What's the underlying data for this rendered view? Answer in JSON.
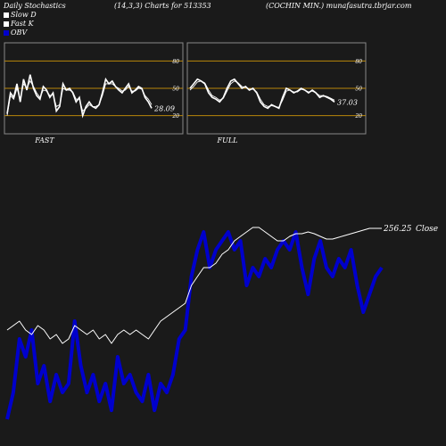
{
  "header": {
    "left": "Daily Stochastics",
    "center": "(14,3,3) Charts for 513353",
    "right": "(COCHIN  MIN.) munafasutra.tbrjar.com"
  },
  "legend": [
    {
      "label": "Slow  D",
      "color": "#ffffff"
    },
    {
      "label": "Fast K",
      "color": "#ffffff"
    },
    {
      "label": "OBV",
      "color": "#0000cc"
    }
  ],
  "chart_data": [
    {
      "type": "line",
      "title": "FAST",
      "levels": [
        80,
        50,
        20
      ],
      "ylim": [
        0,
        100
      ],
      "last_label": "28.09",
      "series": [
        {
          "values": [
            22,
            45,
            40,
            55,
            35,
            60,
            48,
            65,
            50,
            42,
            38,
            52,
            48,
            40,
            45,
            25,
            30,
            55,
            48,
            50,
            45,
            35,
            40,
            20,
            30,
            35,
            30,
            28,
            32,
            45,
            60,
            55,
            58,
            52,
            48,
            45,
            50,
            55,
            45,
            48,
            52,
            50,
            40,
            35,
            28
          ]
        },
        {
          "values": [
            20,
            42,
            38,
            50,
            38,
            55,
            50,
            58,
            52,
            45,
            40,
            48,
            47,
            42,
            43,
            30,
            32,
            50,
            48,
            48,
            46,
            38,
            38,
            25,
            28,
            32,
            30,
            30,
            32,
            42,
            55,
            55,
            55,
            52,
            50,
            47,
            48,
            52,
            47,
            47,
            50,
            49,
            42,
            38,
            32
          ]
        }
      ]
    },
    {
      "type": "line",
      "title": "FULL",
      "levels": [
        80,
        50,
        20
      ],
      "ylim": [
        0,
        100
      ],
      "last_label": "37.03",
      "series": [
        {
          "values": [
            50,
            55,
            60,
            58,
            55,
            45,
            40,
            38,
            35,
            40,
            50,
            58,
            60,
            55,
            50,
            52,
            48,
            50,
            45,
            35,
            30,
            28,
            32,
            30,
            28,
            40,
            50,
            48,
            45,
            47,
            50,
            48,
            45,
            48,
            45,
            40,
            42,
            40,
            38,
            35
          ]
        },
        {
          "values": [
            48,
            52,
            57,
            58,
            56,
            48,
            42,
            40,
            37,
            39,
            47,
            55,
            58,
            56,
            52,
            51,
            49,
            49,
            46,
            38,
            32,
            30,
            31,
            30,
            29,
            37,
            47,
            48,
            46,
            46,
            49,
            48,
            46,
            47,
            45,
            42,
            42,
            41,
            39,
            37
          ]
        }
      ]
    },
    {
      "type": "line",
      "label": "Close",
      "last_value": "256.25",
      "series": [
        {
          "name": "OBV",
          "color": "#0000cc",
          "values": [
            470,
            440,
            380,
            400,
            370,
            430,
            410,
            450,
            420,
            440,
            430,
            360,
            410,
            440,
            420,
            450,
            430,
            460,
            400,
            430,
            420,
            440,
            450,
            420,
            460,
            430,
            440,
            420,
            380,
            370,
            310,
            280,
            260,
            300,
            280,
            270,
            260,
            280,
            270,
            320,
            300,
            310,
            290,
            300,
            280,
            270,
            280,
            260,
            300,
            330,
            290,
            270,
            300,
            310,
            290,
            300,
            280,
            320,
            350,
            330,
            310,
            300
          ]
        },
        {
          "name": "Close",
          "color": "#ffffff",
          "values": [
            370,
            365,
            360,
            370,
            375,
            365,
            370,
            380,
            375,
            385,
            380,
            365,
            370,
            375,
            370,
            380,
            375,
            385,
            375,
            370,
            375,
            370,
            375,
            380,
            370,
            360,
            355,
            350,
            345,
            340,
            320,
            310,
            300,
            300,
            295,
            285,
            280,
            270,
            265,
            260,
            255,
            255,
            260,
            265,
            270,
            270,
            265,
            262,
            262,
            260,
            262,
            265,
            268,
            268,
            266,
            264,
            262,
            260,
            258,
            256,
            256,
            256
          ]
        }
      ]
    }
  ]
}
